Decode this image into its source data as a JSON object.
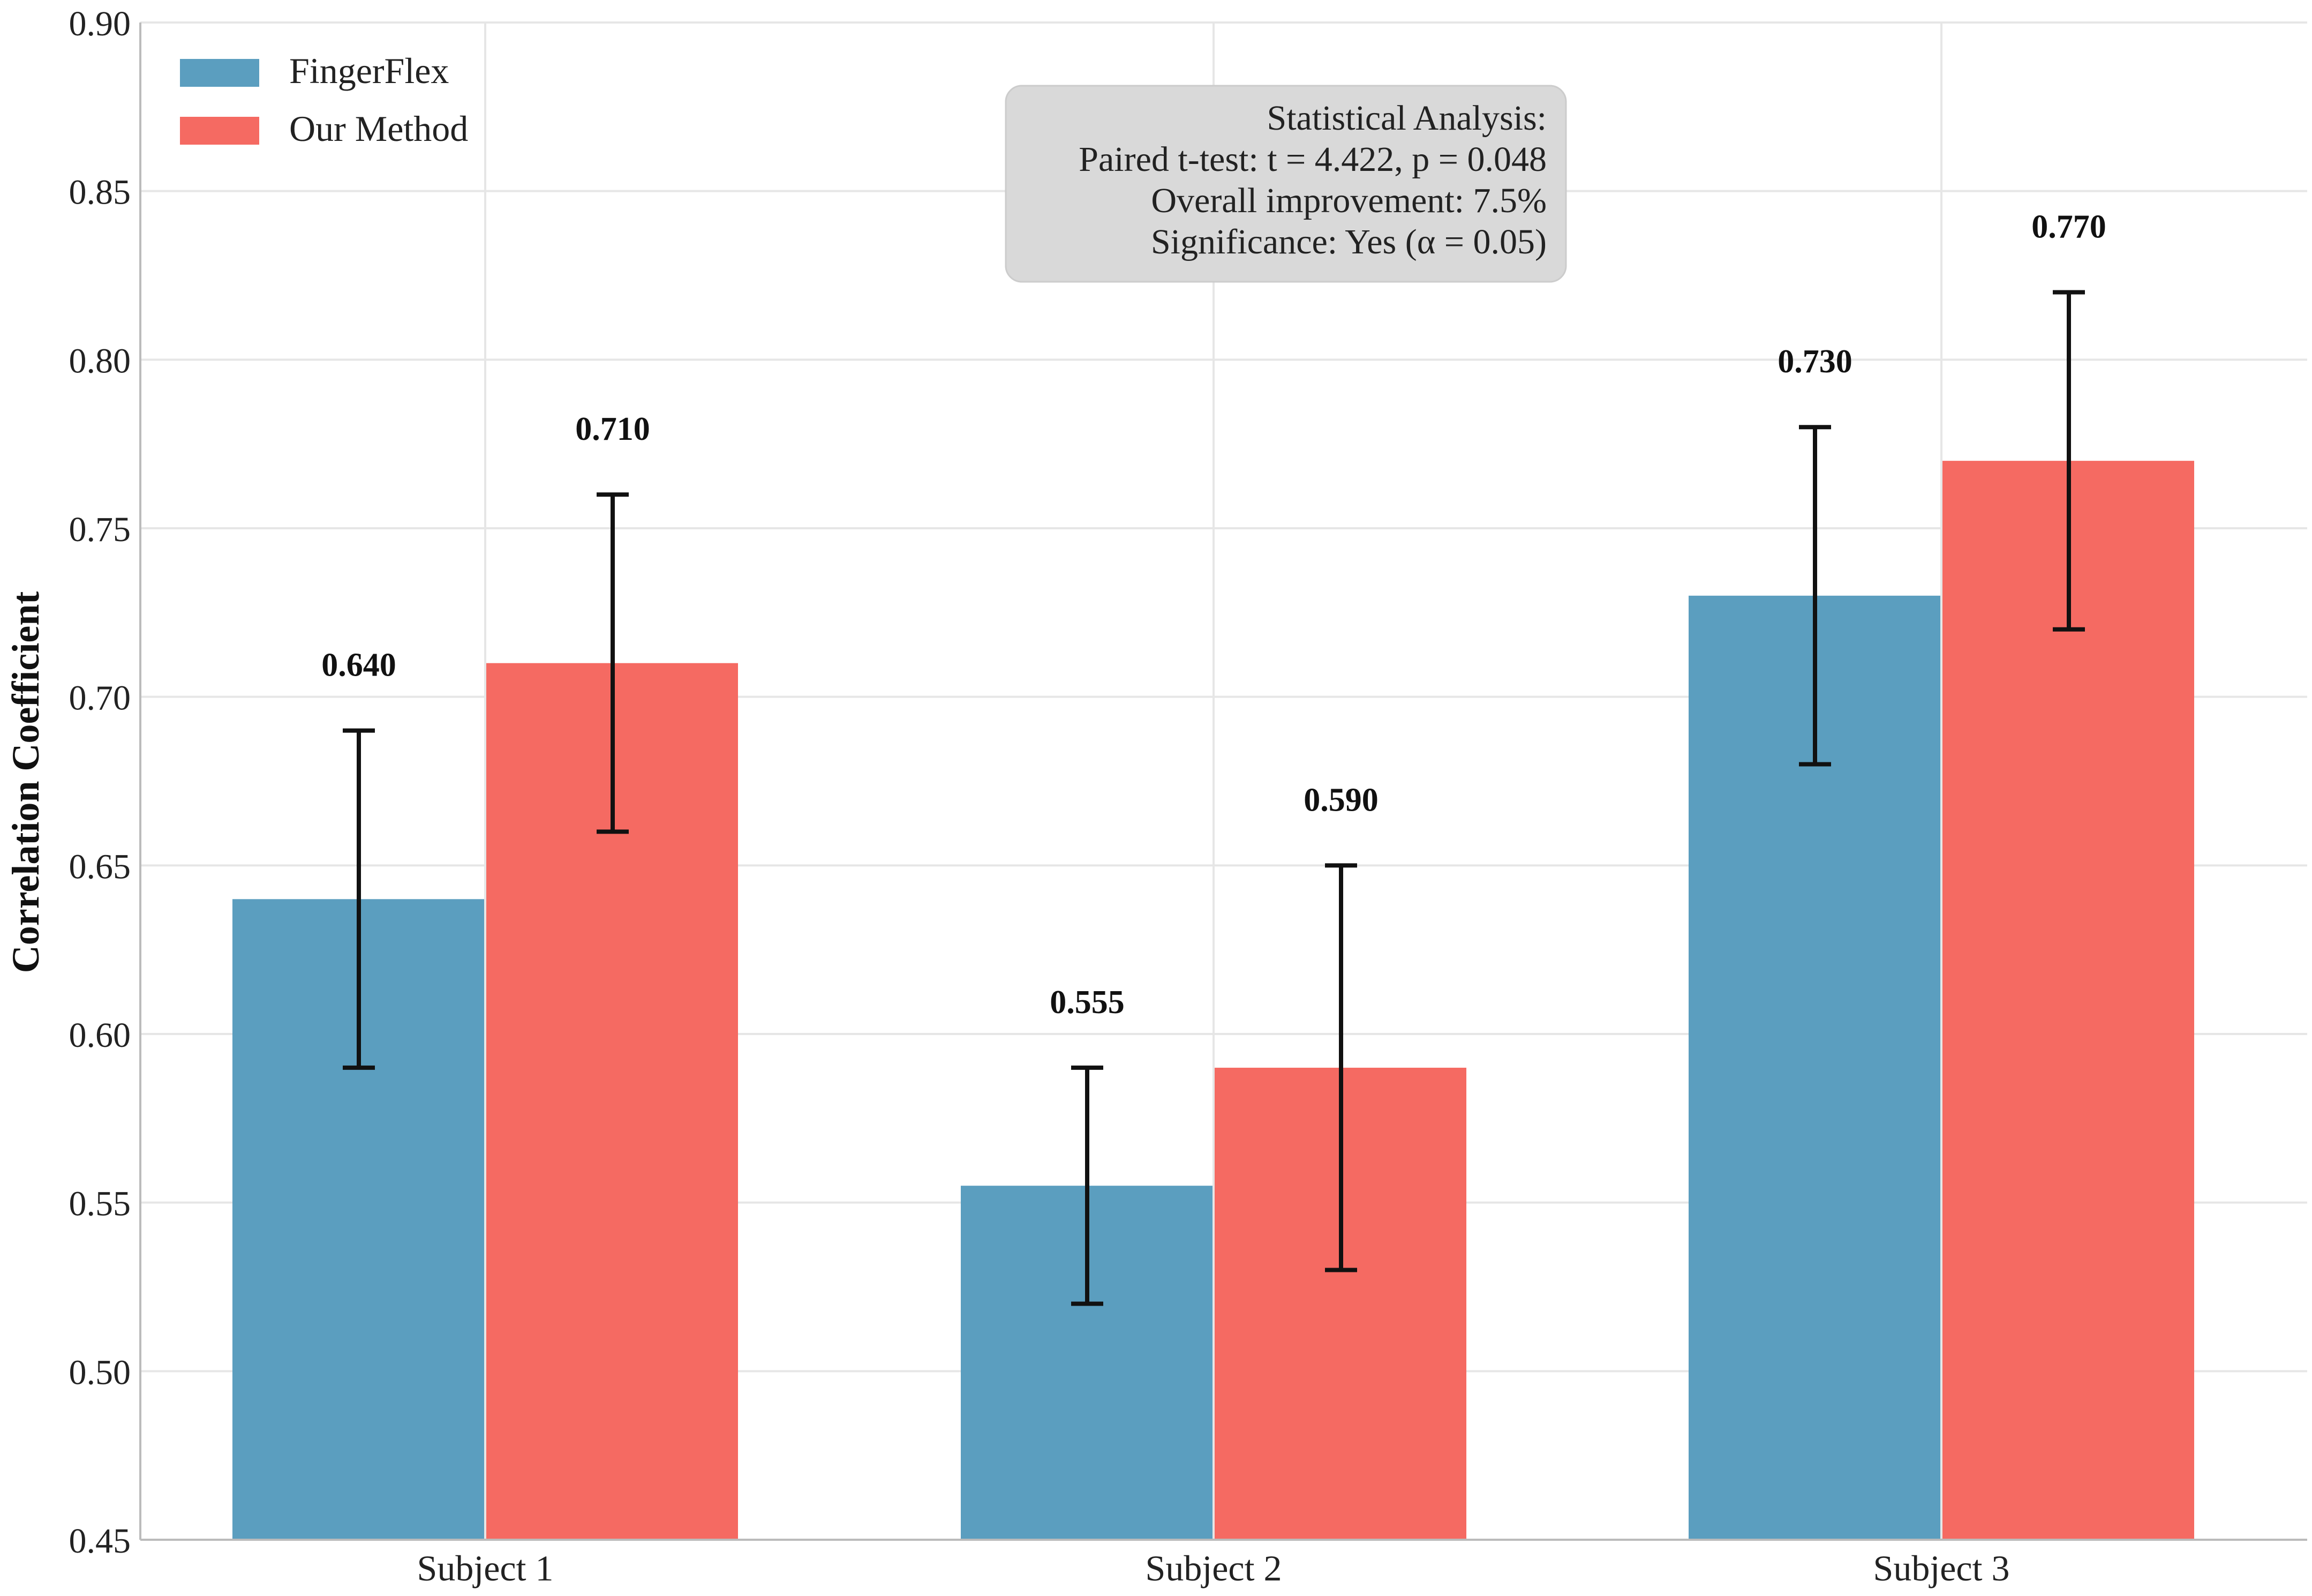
{
  "chart_data": {
    "type": "bar",
    "title": "",
    "xlabel": "",
    "ylabel": "Correlation Coefficient",
    "ylim": [
      0.45,
      0.9
    ],
    "yticks": [
      "0.45",
      "0.50",
      "0.55",
      "0.60",
      "0.65",
      "0.70",
      "0.75",
      "0.80",
      "0.85",
      "0.90"
    ],
    "categories": [
      "Subject 1",
      "Subject 2",
      "Subject 3"
    ],
    "grid": true,
    "legend_position": "top-left",
    "series": [
      {
        "name": "FingerFlex",
        "color": "#5b9ebf",
        "values": [
          0.64,
          0.555,
          0.73
        ],
        "errors": [
          0.05,
          0.035,
          0.05
        ],
        "labels": [
          "0.640",
          "0.555",
          "0.730"
        ]
      },
      {
        "name": "Our Method",
        "color": "#f56a62",
        "values": [
          0.71,
          0.59,
          0.77
        ],
        "errors": [
          0.05,
          0.06,
          0.05
        ],
        "labels": [
          "0.710",
          "0.590",
          "0.770"
        ]
      }
    ],
    "annotation": {
      "position": "top-center",
      "lines": [
        "Statistical Analysis:",
        "Paired t-test: t = 4.422, p = 0.048",
        "Overall improvement: 7.5%",
        "Significance: Yes (α = 0.05)"
      ]
    }
  }
}
